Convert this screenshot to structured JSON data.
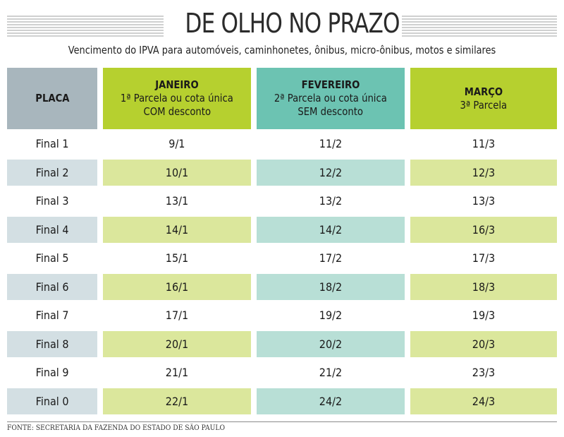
{
  "title": "DE OLHO NO PRAZO",
  "subtitle": "Vencimento do IPVA para automóveis, caminhonetes, ônibus, micro-ônibus, motos e similares",
  "columns": {
    "placa": {
      "title": "PLACA"
    },
    "janeiro": {
      "title": "JANEIRO",
      "line1": "1ª Parcela ou cota única",
      "line2": "COM desconto"
    },
    "fevereiro": {
      "title": "FEVEREIRO",
      "line1": "2ª Parcela ou cota única",
      "line2": "SEM desconto"
    },
    "marco": {
      "title": "MARÇO",
      "line1": "3ª Parcela"
    }
  },
  "rows": [
    {
      "placa": "Final 1",
      "jan": "9/1",
      "fev": "11/2",
      "mar": "11/3"
    },
    {
      "placa": "Final 2",
      "jan": "10/1",
      "fev": "12/2",
      "mar": "12/3"
    },
    {
      "placa": "Final 3",
      "jan": "13/1",
      "fev": "13/2",
      "mar": "13/3"
    },
    {
      "placa": "Final 4",
      "jan": "14/1",
      "fev": "14/2",
      "mar": "16/3"
    },
    {
      "placa": "Final 5",
      "jan": "15/1",
      "fev": "17/2",
      "mar": "17/3"
    },
    {
      "placa": "Final 6",
      "jan": "16/1",
      "fev": "18/2",
      "mar": "18/3"
    },
    {
      "placa": "Final 7",
      "jan": "17/1",
      "fev": "19/2",
      "mar": "19/3"
    },
    {
      "placa": "Final 8",
      "jan": "20/1",
      "fev": "20/2",
      "mar": "20/3"
    },
    {
      "placa": "Final 9",
      "jan": "21/1",
      "fev": "21/2",
      "mar": "23/3"
    },
    {
      "placa": "Final 0",
      "jan": "22/1",
      "fev": "24/2",
      "mar": "24/3"
    }
  ],
  "source": "FONTE: SECRETARIA DA FAZENDA DO ESTADO DE SÃO PAULO",
  "colors": {
    "green": "#b6d02f",
    "teal": "#6cc3b2",
    "gray": "#a8b6bd",
    "light_green": "#dbe79c",
    "light_teal": "#b8dfd6",
    "light_gray": "#d3dfe3"
  }
}
